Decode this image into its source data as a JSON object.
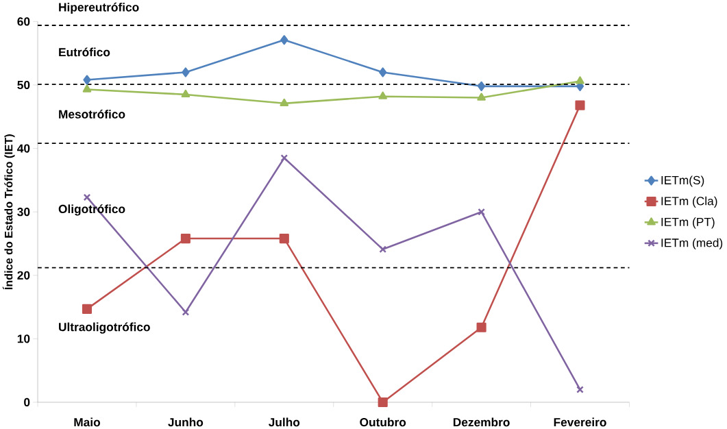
{
  "chart_data": {
    "type": "line",
    "ylabel": "Índice do Estado Trófico (IET)",
    "categories": [
      "Maio",
      "Junho",
      "Julho",
      "Outubro",
      "Dezembro",
      "Fevereiro"
    ],
    "series": [
      {
        "name": "IETm(S)",
        "color": "#4f81bd",
        "marker": "diamond",
        "values": [
          50.8,
          52,
          57.1,
          52,
          49.8,
          49.8
        ]
      },
      {
        "name": "IETm (Cla)",
        "color": "#c0504d",
        "marker": "square",
        "values": [
          14.7,
          25.8,
          25.8,
          0,
          11.8,
          46.8
        ]
      },
      {
        "name": "IETm (PT)",
        "color": "#9bbb59",
        "marker": "triangle",
        "values": [
          49.3,
          48.5,
          47.1,
          48.2,
          48,
          50.6
        ]
      },
      {
        "name": "IETm (med)",
        "color": "#8064a2",
        "marker": "cross",
        "values": [
          32.3,
          14.2,
          38.5,
          24.1,
          30,
          2
        ]
      }
    ],
    "ylim": [
      0,
      60
    ],
    "yticks": [
      0,
      10,
      20,
      30,
      40,
      50,
      60
    ],
    "legend": "right",
    "grid": false,
    "ref_lines": [
      {
        "axis": "y",
        "value": 59.4,
        "color": "#000000",
        "line_style": "dashed"
      },
      {
        "axis": "y",
        "value": 50.1,
        "color": "#000000",
        "line_style": "dashed"
      },
      {
        "axis": "y",
        "value": 40.8,
        "color": "#000000",
        "line_style": "dashed"
      },
      {
        "axis": "y",
        "value": 21.2,
        "color": "#000000",
        "line_style": "dashed"
      }
    ],
    "annotations": [
      "Hipereutrófico",
      "Eutrófico",
      "Mesotrófico",
      "Oligotrófico",
      "Ultraoligotrófico"
    ]
  }
}
